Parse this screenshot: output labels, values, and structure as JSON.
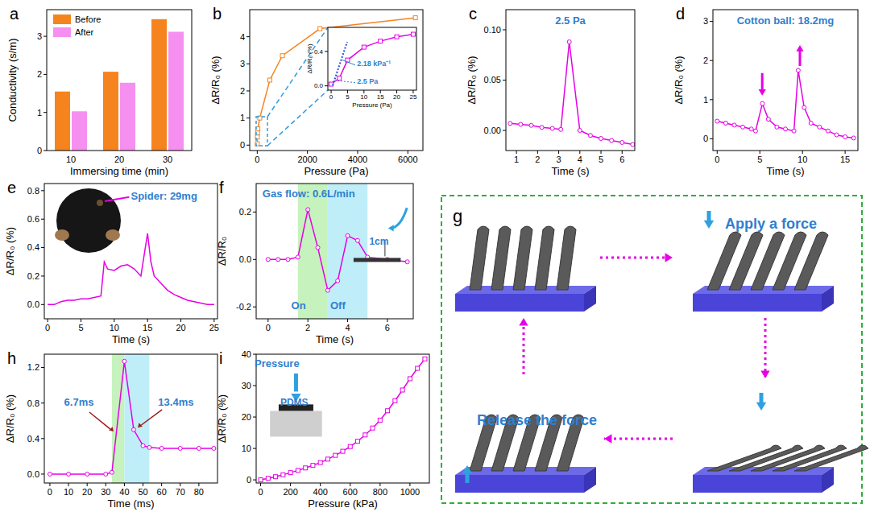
{
  "chart_data": [
    {
      "panel": "a",
      "type": "bar",
      "x_label": "Immersing time (min)",
      "y_label": "Conductivity (s/m)",
      "categories": [
        "10",
        "20",
        "30"
      ],
      "series": [
        {
          "name": "Before",
          "color": "#f5841f",
          "values": [
            1.55,
            2.07,
            3.45
          ]
        },
        {
          "name": "After",
          "color": "#f590f0",
          "values": [
            1.03,
            1.78,
            3.12
          ]
        }
      ],
      "ylim": [
        0,
        3.7
      ],
      "yticks": [
        0,
        1,
        2,
        3
      ],
      "legend": "upper left"
    },
    {
      "panel": "b",
      "type": "line",
      "x_label": "Pressure (Pa)",
      "y_label": "ΔR/R₀ (%)",
      "x": [
        0,
        5,
        10,
        25,
        100,
        500,
        1000,
        2500,
        6300
      ],
      "series": [
        {
          "color": "#f5841f",
          "marker": "square",
          "values": [
            0.05,
            0.3,
            0.45,
            0.6,
            1.0,
            2.4,
            3.3,
            4.3,
            4.7
          ]
        }
      ],
      "xlim": [
        -300,
        6600
      ],
      "ylim": [
        -0.2,
        5
      ],
      "xticks": [
        0,
        2000,
        4000,
        6000
      ],
      "yticks": [
        0,
        1,
        2,
        3,
        4
      ]
    },
    {
      "type": "line",
      "x_label": "Pressure (Pa)",
      "y_label": "ΔR/R₀ (%)",
      "x": [
        0,
        2.5,
        5,
        10,
        15,
        20,
        25
      ],
      "series": [
        {
          "color": "#e600e6",
          "marker": "square",
          "values": [
            0.02,
            0.09,
            0.3,
            0.45,
            0.52,
            0.57,
            0.6
          ]
        }
      ],
      "xlim": [
        -1,
        26
      ],
      "ylim": [
        -0.05,
        0.68
      ],
      "xticks": [
        0,
        5,
        10,
        15,
        20,
        25
      ],
      "yticks": [
        {
          "value": 0,
          "label": "0.0"
        },
        {
          "value": 0.4,
          "label": "0.4"
        }
      ],
      "annotations": [
        "2.18 kPa⁻¹",
        "2.5 Pa"
      ]
    },
    {
      "panel": "c",
      "type": "line",
      "x_label": "Time (s)",
      "y_label": "ΔR/R₀ (%)",
      "x": [
        0.7,
        1.2,
        1.7,
        2.2,
        2.7,
        3.1,
        3.5,
        4.0,
        4.5,
        5.0,
        5.5,
        6.0,
        6.5
      ],
      "series": [
        {
          "color": "#e600e6",
          "marker": "circle",
          "values": [
            0.007,
            0.006,
            0.005,
            0.003,
            0.002,
            0.001,
            0.088,
            0.0,
            -0.005,
            -0.008,
            -0.01,
            -0.012,
            -0.014
          ]
        }
      ],
      "xlim": [
        0.5,
        6.6
      ],
      "ylim": [
        -0.02,
        0.12
      ],
      "xticks": [
        1,
        2,
        3,
        4,
        5,
        6
      ],
      "yticks": [
        {
          "value": 0,
          "label": "0.00"
        },
        {
          "value": 0.05,
          "label": "0.05"
        },
        {
          "value": 0.1,
          "label": "0.10"
        }
      ],
      "annotations": [
        "2.5 Pa"
      ]
    },
    {
      "panel": "d",
      "type": "line",
      "x_label": "Time (s)",
      "y_label": "ΔR/R₀ (%)",
      "x": [
        0,
        1,
        2,
        3,
        4,
        4.5,
        5.3,
        6,
        7,
        8,
        9,
        9.5,
        10.2,
        11,
        12,
        13,
        14,
        15,
        16
      ],
      "series": [
        {
          "color": "#e600e6",
          "marker": "circle",
          "values": [
            0.45,
            0.4,
            0.35,
            0.3,
            0.25,
            0.2,
            0.9,
            0.5,
            0.3,
            0.25,
            0.2,
            1.75,
            0.8,
            0.4,
            0.3,
            0.2,
            0.1,
            0.05,
            0.02
          ]
        }
      ],
      "xlim": [
        -0.5,
        16.5
      ],
      "ylim": [
        -0.3,
        3.3
      ],
      "xticks": [
        0,
        5,
        10,
        15
      ],
      "yticks": [
        0,
        1,
        2,
        3
      ],
      "annotations": [
        "Cotton ball: 18.2mg"
      ]
    },
    {
      "panel": "e",
      "type": "line",
      "x_label": "Time (s)",
      "y_label": "ΔR/R₀ (%)",
      "x": [
        0,
        1,
        2,
        3,
        4,
        5,
        6,
        7,
        8,
        8.5,
        9,
        10,
        11,
        12,
        13,
        14,
        15,
        15.5,
        16,
        17,
        18,
        19,
        20,
        21,
        22,
        23,
        24,
        25
      ],
      "series": [
        {
          "color": "#e600e6",
          "marker": "none",
          "values": [
            0.0,
            0.0,
            0.02,
            0.03,
            0.03,
            0.04,
            0.04,
            0.05,
            0.06,
            0.3,
            0.25,
            0.24,
            0.27,
            0.28,
            0.25,
            0.2,
            0.5,
            0.3,
            0.2,
            0.15,
            0.1,
            0.07,
            0.05,
            0.03,
            0.02,
            0.01,
            0.0,
            0.0
          ]
        }
      ],
      "xlim": [
        -0.5,
        25.5
      ],
      "ylim": [
        -0.1,
        0.85
      ],
      "xticks": [
        0,
        5,
        10,
        15,
        20,
        25
      ],
      "yticks": [
        {
          "value": 0,
          "label": "0.0"
        },
        {
          "value": 0.2,
          "label": "0.2"
        },
        {
          "value": 0.4,
          "label": "0.4"
        },
        {
          "value": 0.6,
          "label": "0.6"
        },
        {
          "value": 0.8,
          "label": "0.8"
        }
      ],
      "annotations": [
        "Spider: 29mg"
      ]
    },
    {
      "panel": "f",
      "type": "line",
      "x_label": "Time (s)",
      "y_label": "ΔR/R₀",
      "x": [
        0,
        0.5,
        1,
        1.5,
        2,
        2.5,
        3,
        3.5,
        4,
        4.5,
        5,
        6,
        7
      ],
      "series": [
        {
          "color": "#e600e6",
          "marker": "circle",
          "values": [
            0,
            0,
            0,
            0.01,
            0.21,
            0.05,
            -0.13,
            -0.09,
            0.1,
            0.08,
            0.01,
            0,
            -0.01
          ]
        }
      ],
      "xlim": [
        -0.6,
        7.3
      ],
      "ylim": [
        -0.25,
        0.32
      ],
      "xticks": [
        0,
        2,
        4,
        6
      ],
      "yticks": [
        {
          "value": -0.2,
          "label": "-0.2"
        },
        {
          "value": 0,
          "label": "0.0"
        },
        {
          "value": 0.2,
          "label": "0.2"
        }
      ],
      "highlight_ranges": [
        [
          1.5,
          3.0
        ],
        [
          3.0,
          5.0
        ]
      ],
      "annotations": [
        "Gas flow: 0.6L/min",
        "1cm",
        "On",
        "Off"
      ]
    },
    {
      "panel": "h",
      "type": "line",
      "x_label": "Time (ms)",
      "y_label": "ΔR/R₀ (%)",
      "x": [
        0,
        10,
        20,
        30,
        33.3,
        40,
        45,
        50,
        53.4,
        60,
        70,
        80,
        88
      ],
      "series": [
        {
          "color": "#e600e6",
          "marker": "circle",
          "values": [
            0,
            0,
            0,
            0,
            0.02,
            1.27,
            0.5,
            0.32,
            0.3,
            0.29,
            0.29,
            0.29,
            0.29
          ]
        }
      ],
      "xlim": [
        -3,
        90
      ],
      "ylim": [
        -0.1,
        1.35
      ],
      "xticks": [
        0,
        10,
        20,
        30,
        40,
        50,
        60,
        70,
        80
      ],
      "yticks": [
        {
          "value": 0,
          "label": "0.0"
        },
        {
          "value": 0.4,
          "label": "0.4"
        },
        {
          "value": 0.8,
          "label": "0.8"
        },
        {
          "value": 1.2,
          "label": "1.2"
        }
      ],
      "highlight_ranges": [
        [
          33.3,
          40
        ],
        [
          40,
          53.4
        ]
      ],
      "annotations": [
        "6.7ms",
        "13.4ms"
      ]
    },
    {
      "panel": "i",
      "type": "line",
      "x_label": "Pressure (kPa)",
      "y_label": "ΔR/R₀ (%)",
      "x": [
        0,
        50,
        100,
        150,
        200,
        250,
        300,
        350,
        400,
        450,
        500,
        550,
        600,
        650,
        700,
        750,
        800,
        850,
        900,
        950,
        1000,
        1050,
        1100
      ],
      "series": [
        {
          "color": "#e600e6",
          "marker": "square",
          "values": [
            0,
            0.5,
            1,
            1.6,
            2.3,
            3,
            3.8,
            4.6,
            5.5,
            6.6,
            7.8,
            9.1,
            10.6,
            12.3,
            14.3,
            16.5,
            19,
            22,
            25.2,
            28.6,
            32.2,
            35.5,
            38.5
          ]
        }
      ],
      "xlim": [
        -30,
        1130
      ],
      "ylim": [
        -1,
        40
      ],
      "xticks": [
        0,
        200,
        400,
        600,
        800,
        1000
      ],
      "yticks": [
        0,
        10,
        20,
        30,
        40
      ],
      "annotations": [
        "Pressure",
        "PDMS"
      ]
    }
  ],
  "diagram": {
    "panel": "g",
    "labels": [
      "Apply a force",
      "Release the force"
    ]
  }
}
